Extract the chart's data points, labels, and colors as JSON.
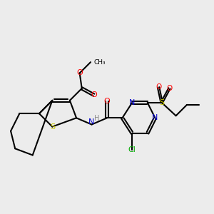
{
  "bg_color": "#ececec",
  "bond_color": "#000000",
  "bond_width": 1.5,
  "colors": {
    "S": "#cccc00",
    "O": "#ff0000",
    "N": "#0000cc",
    "Cl": "#00aa00",
    "C": "#000000",
    "H": "#888888"
  }
}
